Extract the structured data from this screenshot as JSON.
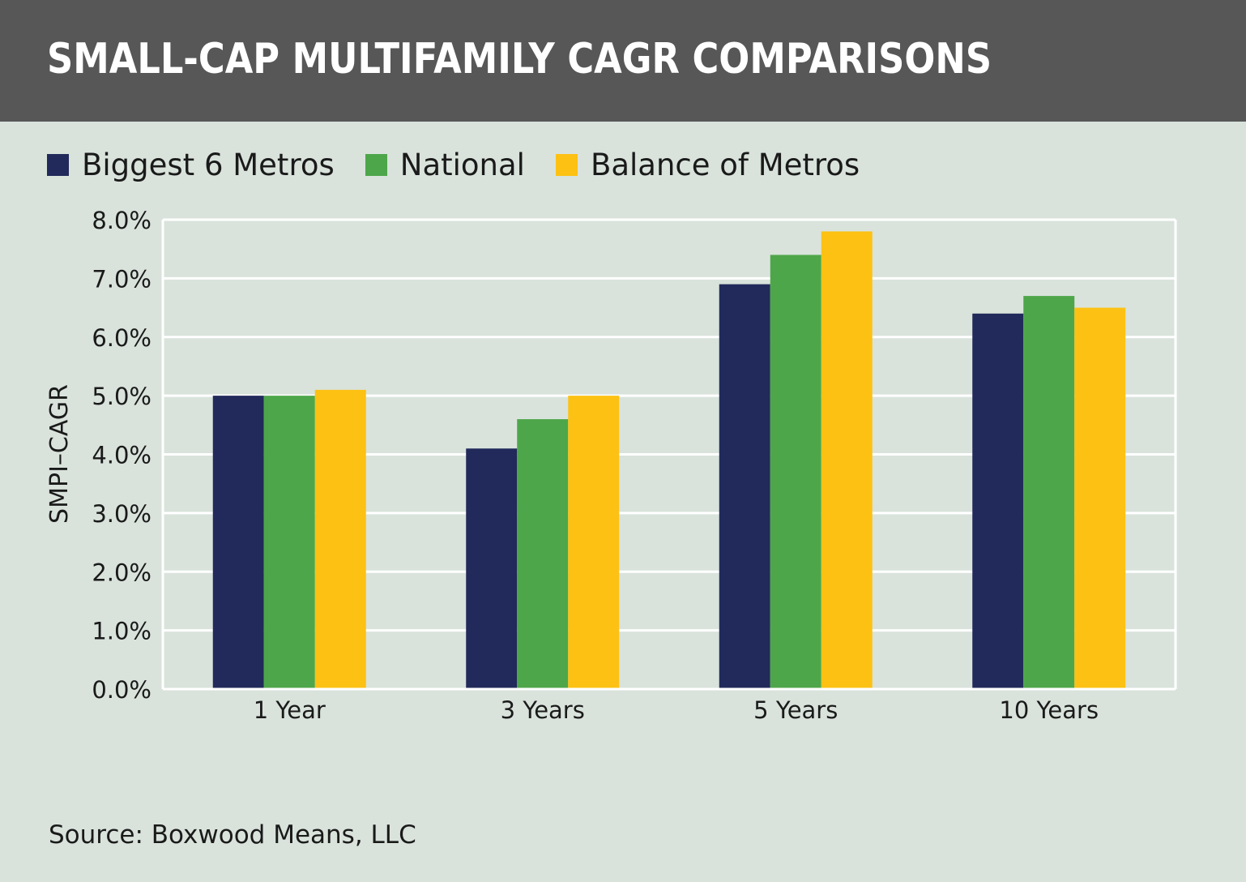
{
  "header": {
    "title": "SMALL-CAP MULTIFAMILY CAGR COMPARISONS"
  },
  "footer": {
    "source": "Source: Boxwood Means, LLC"
  },
  "colors": {
    "header_bg": "#575757",
    "background": "#d9e3dc",
    "grid": "#ffffff"
  },
  "chart_data": {
    "type": "bar",
    "title": "SMALL-CAP MULTIFAMILY CAGR COMPARISONS",
    "xlabel": "",
    "ylabel": "SMPI–CAGR",
    "categories": [
      "1 Year",
      "3 Years",
      "5 Years",
      "10 Years"
    ],
    "series": [
      {
        "name": "Biggest 6 Metros",
        "color": "#212a5a",
        "values": [
          5.0,
          4.1,
          6.9,
          6.4
        ]
      },
      {
        "name": "National",
        "color": "#4ea64a",
        "values": [
          5.0,
          4.6,
          7.4,
          6.7
        ]
      },
      {
        "name": "Balance of Metros",
        "color": "#fcc113",
        "values": [
          5.1,
          5.0,
          7.8,
          6.5
        ]
      }
    ],
    "ylim": [
      0,
      8
    ],
    "yticks": [
      "0.0%",
      "1.0%",
      "2.0%",
      "3.0%",
      "4.0%",
      "5.0%",
      "6.0%",
      "7.0%",
      "8.0%"
    ],
    "grid": true,
    "legend_position": "top-left"
  }
}
